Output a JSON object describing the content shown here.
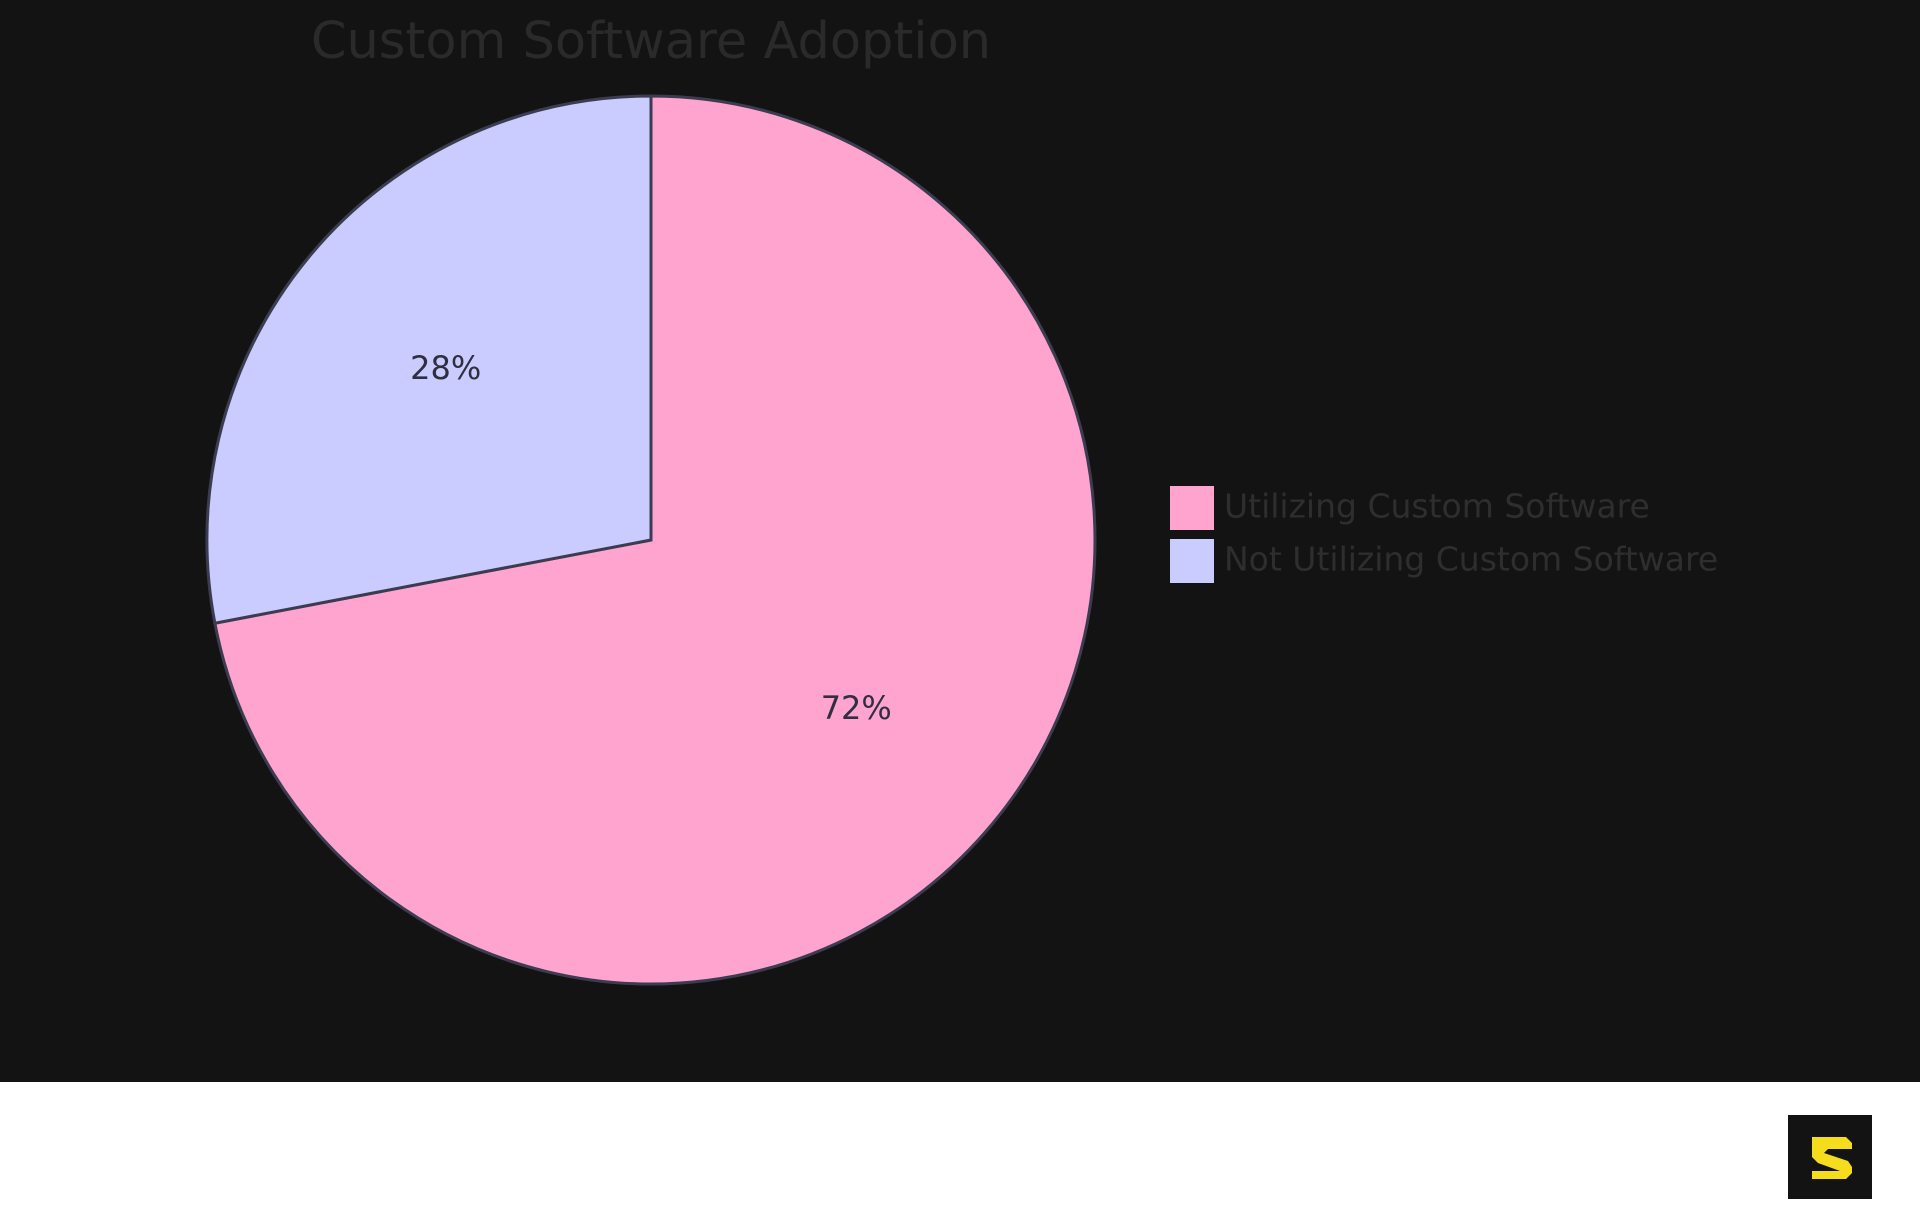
{
  "chart_data": {
    "type": "pie",
    "title": "Custom Software Adoption",
    "slices": [
      {
        "label": "Utilizing Custom Software",
        "value": 72,
        "display": "72%",
        "color": "#FFA3CF"
      },
      {
        "label": "Not Utilizing Custom Software",
        "value": 28,
        "display": "28%",
        "color": "#CACBFF"
      }
    ],
    "legend_position": "right",
    "start_angle": "top, clockwise"
  },
  "colors": {
    "background": "#131313",
    "slice_stroke": "#3c3c50",
    "footer": "#ffffff",
    "logo_accent": "#F5DD1E"
  },
  "branding": {
    "logo_icon": "s-logo-icon"
  }
}
